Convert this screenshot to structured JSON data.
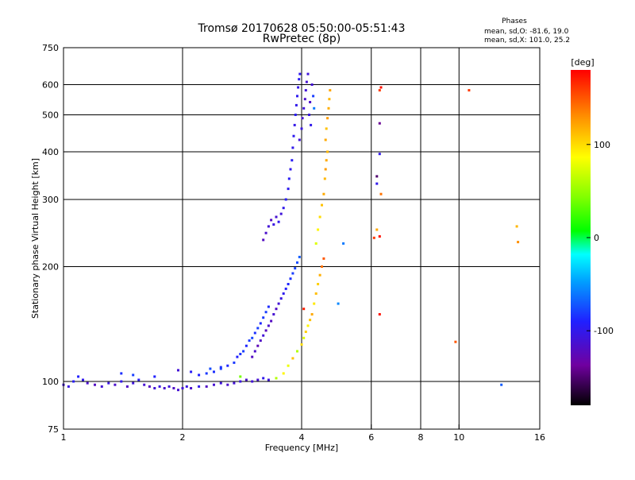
{
  "chart_data": {
    "type": "scatter",
    "title": "Tromsø 20170628 05:50:00-05:51:43",
    "subtitle": "RwPretec (8p)",
    "xlabel": "Frequency [MHz]",
    "ylabel": "Stationary phase Virtual Height [km]",
    "x_scale": "log",
    "y_scale": "log",
    "xlim": [
      1,
      16
    ],
    "ylim": [
      75,
      750
    ],
    "x_ticks": [
      1,
      2,
      4,
      6,
      8,
      10,
      16
    ],
    "x_tick_labels": [
      "1",
      "2",
      "4",
      "6",
      "8",
      "10",
      "16"
    ],
    "y_ticks": [
      75,
      100,
      200,
      300,
      400,
      500,
      600,
      750
    ],
    "y_tick_labels": [
      "75",
      "100",
      "200",
      "300",
      "400",
      "500",
      "600",
      "750"
    ],
    "grid": true,
    "stats": {
      "title": "Phases",
      "line_o": "mean, sd,O: -81.6, 19.0",
      "line_x": "mean, sd,X: 101.0, 25.2"
    },
    "colorbar": {
      "label": "[deg]",
      "range": [
        -180,
        180
      ],
      "ticks": [
        100,
        0,
        -100
      ],
      "tick_labels": [
        "100",
        "0",
        "-100"
      ]
    },
    "series": [
      {
        "name": "echoes",
        "points": [
          [
            1.0,
            98,
            -110
          ],
          [
            1.03,
            97,
            -105
          ],
          [
            1.06,
            100,
            -95
          ],
          [
            1.09,
            103,
            -90
          ],
          [
            1.12,
            101,
            -100
          ],
          [
            1.15,
            99,
            -115
          ],
          [
            1.2,
            98,
            -120
          ],
          [
            1.25,
            97,
            -110
          ],
          [
            1.3,
            99,
            -105
          ],
          [
            1.35,
            98,
            -115
          ],
          [
            1.4,
            100,
            -100
          ],
          [
            1.45,
            97,
            -118
          ],
          [
            1.5,
            99,
            -108
          ],
          [
            1.55,
            101,
            -95
          ],
          [
            1.6,
            98,
            -112
          ],
          [
            1.65,
            97,
            -120
          ],
          [
            1.7,
            96,
            -110
          ],
          [
            1.75,
            97,
            -105
          ],
          [
            1.8,
            96,
            -115
          ],
          [
            1.85,
            97,
            -108
          ],
          [
            1.9,
            96,
            -118
          ],
          [
            1.95,
            95,
            -112
          ],
          [
            2.0,
            96,
            -110
          ],
          [
            2.05,
            97,
            -105
          ],
          [
            2.1,
            96,
            -115
          ],
          [
            2.2,
            97,
            -100
          ],
          [
            2.3,
            97,
            -118
          ],
          [
            2.4,
            98,
            -112
          ],
          [
            2.5,
            99,
            -108
          ],
          [
            2.6,
            98,
            -115
          ],
          [
            2.7,
            99,
            -110
          ],
          [
            2.8,
            100,
            -105
          ],
          [
            2.9,
            101,
            -115
          ],
          [
            3.0,
            100,
            -110
          ],
          [
            3.1,
            101,
            -112
          ],
          [
            3.2,
            102,
            -100
          ],
          [
            3.3,
            101,
            -108
          ],
          [
            3.45,
            102,
            60
          ],
          [
            1.4,
            105,
            -85
          ],
          [
            1.5,
            104,
            -80
          ],
          [
            1.7,
            103,
            -90
          ],
          [
            1.95,
            107,
            -110
          ],
          [
            2.1,
            106,
            -95
          ],
          [
            2.35,
            108,
            -75
          ],
          [
            2.5,
            109,
            -85
          ],
          [
            2.2,
            104,
            -90
          ],
          [
            2.3,
            105,
            -82
          ],
          [
            2.4,
            106,
            -85
          ],
          [
            2.5,
            108,
            -80
          ],
          [
            2.6,
            110,
            -88
          ],
          [
            2.7,
            112,
            -82
          ],
          [
            2.75,
            116,
            -90
          ],
          [
            2.8,
            118,
            -85
          ],
          [
            2.85,
            120,
            -80
          ],
          [
            2.9,
            124,
            -88
          ],
          [
            2.95,
            128,
            -82
          ],
          [
            3.0,
            130,
            -78
          ],
          [
            3.05,
            134,
            -85
          ],
          [
            3.1,
            138,
            -80
          ],
          [
            3.15,
            142,
            -88
          ],
          [
            3.2,
            147,
            -82
          ],
          [
            3.25,
            152,
            -80
          ],
          [
            3.3,
            157,
            -86
          ],
          [
            3.0,
            116,
            -120
          ],
          [
            3.05,
            120,
            -115
          ],
          [
            3.1,
            124,
            -125
          ],
          [
            3.15,
            128,
            -118
          ],
          [
            3.2,
            132,
            -110
          ],
          [
            3.25,
            136,
            -122
          ],
          [
            3.3,
            140,
            -115
          ],
          [
            3.35,
            144,
            -120
          ],
          [
            3.4,
            150,
            -112
          ],
          [
            3.45,
            155,
            -118
          ],
          [
            3.5,
            160,
            -110
          ],
          [
            3.55,
            165,
            -105
          ],
          [
            3.6,
            170,
            -98
          ],
          [
            3.65,
            175,
            -92
          ],
          [
            3.7,
            180,
            -88
          ],
          [
            3.75,
            186,
            -85
          ],
          [
            3.8,
            192,
            -80
          ],
          [
            3.85,
            198,
            -78
          ],
          [
            3.9,
            205,
            -75
          ],
          [
            3.95,
            212,
            -70
          ],
          [
            3.2,
            235,
            -120
          ],
          [
            3.25,
            245,
            -115
          ],
          [
            3.3,
            255,
            -110
          ],
          [
            3.35,
            265,
            -118
          ],
          [
            3.4,
            258,
            -105
          ],
          [
            3.45,
            270,
            -112
          ],
          [
            3.5,
            262,
            -100
          ],
          [
            3.55,
            275,
            -108
          ],
          [
            3.6,
            285,
            -100
          ],
          [
            3.65,
            300,
            -95
          ],
          [
            3.7,
            320,
            -98
          ],
          [
            3.72,
            340,
            -95
          ],
          [
            3.75,
            360,
            -100
          ],
          [
            3.78,
            380,
            -95
          ],
          [
            3.8,
            410,
            -100
          ],
          [
            3.82,
            440,
            -98
          ],
          [
            3.84,
            470,
            -102
          ],
          [
            3.86,
            500,
            -96
          ],
          [
            3.88,
            530,
            -100
          ],
          [
            3.9,
            560,
            -98
          ],
          [
            3.92,
            590,
            -102
          ],
          [
            3.94,
            620,
            -96
          ],
          [
            3.96,
            640,
            -100
          ],
          [
            3.95,
            430,
            -110
          ],
          [
            4.0,
            460,
            -105
          ],
          [
            4.02,
            490,
            -112
          ],
          [
            4.05,
            520,
            -108
          ],
          [
            4.08,
            550,
            -115
          ],
          [
            4.1,
            580,
            -110
          ],
          [
            4.12,
            610,
            -112
          ],
          [
            4.15,
            640,
            -108
          ],
          [
            4.18,
            500,
            -105
          ],
          [
            4.2,
            540,
            -115
          ],
          [
            4.22,
            470,
            -100
          ],
          [
            4.25,
            600,
            -110
          ],
          [
            4.28,
            560,
            -80
          ],
          [
            4.3,
            520,
            -60
          ],
          [
            4.35,
            230,
            75
          ],
          [
            4.4,
            250,
            90
          ],
          [
            4.45,
            270,
            100
          ],
          [
            4.5,
            290,
            110
          ],
          [
            4.55,
            310,
            120
          ],
          [
            4.58,
            340,
            115
          ],
          [
            4.6,
            360,
            125
          ],
          [
            4.62,
            380,
            120
          ],
          [
            4.65,
            400,
            115
          ],
          [
            4.6,
            430,
            120
          ],
          [
            4.62,
            460,
            110
          ],
          [
            4.65,
            490,
            125
          ],
          [
            4.68,
            520,
            118
          ],
          [
            4.7,
            550,
            115
          ],
          [
            4.72,
            580,
            122
          ],
          [
            3.6,
            105,
            90
          ],
          [
            3.7,
            110,
            80
          ],
          [
            3.8,
            115,
            110
          ],
          [
            3.9,
            120,
            60
          ],
          [
            4.0,
            125,
            100
          ],
          [
            4.05,
            130,
            75
          ],
          [
            4.1,
            135,
            105
          ],
          [
            4.15,
            140,
            90
          ],
          [
            4.2,
            145,
            110
          ],
          [
            4.25,
            150,
            120
          ],
          [
            4.3,
            160,
            95
          ],
          [
            4.35,
            170,
            112
          ],
          [
            4.4,
            180,
            105
          ],
          [
            4.45,
            190,
            118
          ],
          [
            4.5,
            200,
            140
          ],
          [
            4.55,
            210,
            150
          ],
          [
            4.05,
            155,
            170
          ],
          [
            6.1,
            238,
            160
          ],
          [
            6.2,
            250,
            120
          ],
          [
            6.3,
            240,
            175
          ],
          [
            6.3,
            150,
            175
          ],
          [
            6.2,
            330,
            -100
          ],
          [
            6.3,
            395,
            -100
          ],
          [
            6.3,
            475,
            -140
          ],
          [
            6.2,
            345,
            -150
          ],
          [
            6.35,
            310,
            140
          ],
          [
            6.3,
            580,
            160
          ],
          [
            6.35,
            590,
            175
          ],
          [
            10.6,
            580,
            160
          ],
          [
            9.8,
            127,
            150
          ],
          [
            14.0,
            255,
            115
          ],
          [
            14.1,
            232,
            130
          ],
          [
            12.8,
            98,
            -70
          ],
          [
            5.1,
            230,
            -60
          ],
          [
            4.95,
            160,
            -55
          ],
          [
            2.8,
            103,
            40
          ]
        ]
      }
    ]
  }
}
